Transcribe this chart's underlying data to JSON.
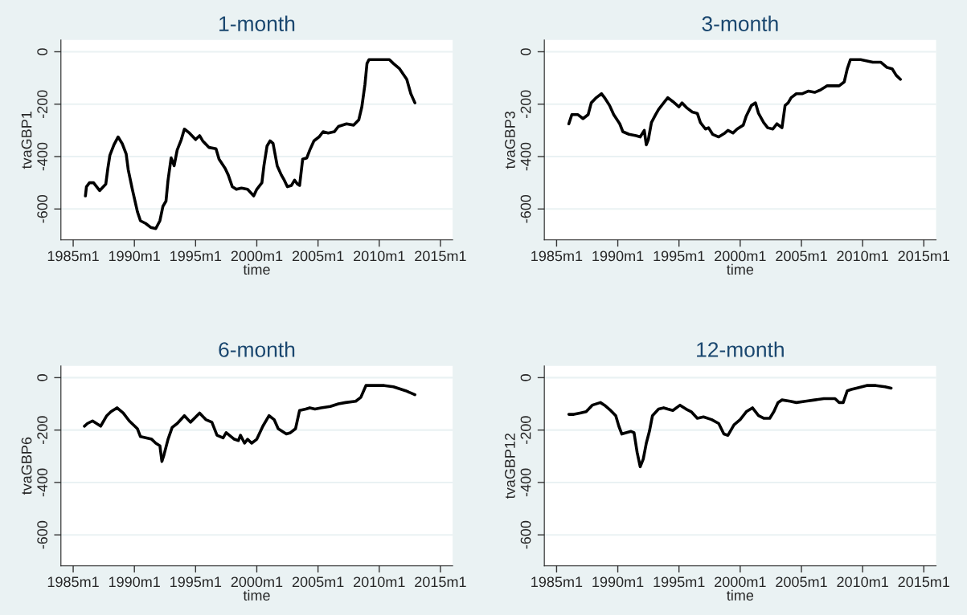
{
  "chart_data": [
    {
      "type": "line",
      "title": "1-month",
      "xlabel": "time",
      "ylabel": "tvaGBP1",
      "color": "#000000",
      "grid": "y",
      "xlim": [
        "1984-01",
        "2016-01"
      ],
      "ylim": [
        -718,
        45
      ],
      "yticks": [
        -600,
        -400,
        -200,
        0
      ],
      "xticks": [
        {
          "value": "1985-01",
          "label": "1985m1"
        },
        {
          "value": "1990-01",
          "label": "1990m1"
        },
        {
          "value": "1995-01",
          "label": "1995m1"
        },
        {
          "value": "2000-01",
          "label": "2000m1"
        },
        {
          "value": "2005-01",
          "label": "2005m1"
        },
        {
          "value": "2010-01",
          "label": "2010m1"
        },
        {
          "value": "2015-01",
          "label": "2015m1"
        }
      ],
      "x": [
        "1986-01",
        "1986-02",
        "1986-05",
        "1986-09",
        "1987-03",
        "1987-09",
        "1987-11",
        "1988-01",
        "1988-05",
        "1988-09",
        "1989-01",
        "1989-05",
        "1989-07",
        "1989-11",
        "1990-04",
        "1990-07",
        "1990-12",
        "1991-05",
        "1991-10",
        "1992-02",
        "1992-05",
        "1992-08",
        "1992-10",
        "1993-01",
        "1993-04",
        "1993-07",
        "1993-11",
        "1994-02",
        "1994-07",
        "1995-01",
        "1995-05",
        "1995-08",
        "1996-02",
        "1996-09",
        "1996-12",
        "1997-06",
        "1997-09",
        "1998-01",
        "1998-05",
        "1998-10",
        "1999-04",
        "1999-10",
        "2000-01",
        "2000-06",
        "2000-08",
        "2000-11",
        "2001-02",
        "2001-05",
        "2001-09",
        "2002-01",
        "2002-04",
        "2002-07",
        "2002-11",
        "2003-02",
        "2003-05",
        "2003-07",
        "2003-10",
        "2004-02",
        "2004-05",
        "2004-09",
        "2005-02",
        "2005-06",
        "2005-11",
        "2006-05",
        "2006-09",
        "2007-05",
        "2007-12",
        "2008-05",
        "2008-08",
        "2008-11",
        "2009-01",
        "2009-03",
        "2010-11",
        "2011-03",
        "2011-09",
        "2012-04",
        "2012-08",
        "2012-12"
      ],
      "values": [
        -550,
        -515,
        -500,
        -500,
        -530,
        -505,
        -445,
        -395,
        -355,
        -325,
        -350,
        -390,
        -450,
        -525,
        -610,
        -645,
        -655,
        -670,
        -675,
        -645,
        -590,
        -570,
        -490,
        -405,
        -435,
        -375,
        -335,
        -295,
        -310,
        -335,
        -320,
        -340,
        -365,
        -370,
        -410,
        -445,
        -470,
        -515,
        -525,
        -520,
        -525,
        -550,
        -525,
        -500,
        -435,
        -360,
        -340,
        -350,
        -435,
        -470,
        -490,
        -515,
        -510,
        -490,
        -505,
        -510,
        -410,
        -405,
        -375,
        -340,
        -325,
        -305,
        -310,
        -305,
        -285,
        -275,
        -280,
        -260,
        -210,
        -125,
        -45,
        -30,
        -30,
        -45,
        -65,
        -105,
        -160,
        -195
      ]
    },
    {
      "type": "line",
      "title": "3-month",
      "xlabel": "time",
      "ylabel": "tvaGBP3",
      "color": "#000000",
      "grid": "y",
      "xlim": [
        "1984-01",
        "2016-01"
      ],
      "ylim": [
        -718,
        45
      ],
      "yticks": [
        -600,
        -400,
        -200,
        0
      ],
      "xticks": [
        {
          "value": "1985-01",
          "label": "1985m1"
        },
        {
          "value": "1990-01",
          "label": "1990m1"
        },
        {
          "value": "1995-01",
          "label": "1995m1"
        },
        {
          "value": "2000-01",
          "label": "2000m1"
        },
        {
          "value": "2005-01",
          "label": "2005m1"
        },
        {
          "value": "2010-01",
          "label": "2010m1"
        },
        {
          "value": "2015-01",
          "label": "2015m1"
        }
      ],
      "x": [
        "1986-01",
        "1986-04",
        "1986-10",
        "1987-03",
        "1987-08",
        "1987-11",
        "1988-04",
        "1988-09",
        "1988-12",
        "1989-05",
        "1989-09",
        "1990-03",
        "1990-06",
        "1990-12",
        "1991-07",
        "1991-11",
        "1992-03",
        "1992-05",
        "1992-07",
        "1992-10",
        "1993-02",
        "1993-05",
        "1993-10",
        "1994-02",
        "1994-07",
        "1995-01",
        "1995-04",
        "1995-09",
        "1996-02",
        "1996-07",
        "1996-10",
        "1997-03",
        "1997-06",
        "1997-10",
        "1998-04",
        "1998-10",
        "1999-01",
        "1999-06",
        "1999-10",
        "2000-04",
        "2000-07",
        "2000-12",
        "2001-04",
        "2001-07",
        "2001-12",
        "2002-04",
        "2002-09",
        "2003-01",
        "2003-06",
        "2003-09",
        "2003-12",
        "2004-03",
        "2004-08",
        "2005-02",
        "2005-08",
        "2006-02",
        "2006-08",
        "2007-02",
        "2007-08",
        "2008-02",
        "2008-07",
        "2008-10",
        "2009-01",
        "2009-11",
        "2010-11",
        "2011-07",
        "2012-01",
        "2012-06",
        "2012-10",
        "2013-02"
      ],
      "values": [
        -275,
        -240,
        -240,
        -255,
        -240,
        -195,
        -175,
        -160,
        -175,
        -205,
        -240,
        -275,
        -305,
        -315,
        -320,
        -325,
        -300,
        -355,
        -335,
        -270,
        -240,
        -220,
        -195,
        -175,
        -190,
        -210,
        -195,
        -215,
        -230,
        -235,
        -270,
        -295,
        -290,
        -315,
        -325,
        -310,
        -300,
        -310,
        -295,
        -280,
        -245,
        -205,
        -195,
        -235,
        -270,
        -290,
        -295,
        -275,
        -290,
        -205,
        -195,
        -175,
        -160,
        -160,
        -150,
        -155,
        -145,
        -130,
        -130,
        -130,
        -115,
        -65,
        -30,
        -30,
        -40,
        -40,
        -60,
        -65,
        -90,
        -105
      ]
    },
    {
      "type": "line",
      "title": "6-month",
      "xlabel": "time",
      "ylabel": "tvaGBP6",
      "color": "#000000",
      "grid": "y",
      "xlim": [
        "1984-01",
        "2016-01"
      ],
      "ylim": [
        -718,
        45
      ],
      "yticks": [
        -600,
        -400,
        -200,
        0
      ],
      "xticks": [
        {
          "value": "1985-01",
          "label": "1985m1"
        },
        {
          "value": "1990-01",
          "label": "1990m1"
        },
        {
          "value": "1995-01",
          "label": "1995m1"
        },
        {
          "value": "2000-01",
          "label": "2000m1"
        },
        {
          "value": "2005-01",
          "label": "2005m1"
        },
        {
          "value": "2010-01",
          "label": "2010m1"
        },
        {
          "value": "2015-01",
          "label": "2015m1"
        }
      ],
      "x": [
        "1985-12",
        "1986-03",
        "1986-08",
        "1987-04",
        "1987-10",
        "1988-02",
        "1988-08",
        "1989-02",
        "1989-08",
        "1990-04",
        "1990-07",
        "1991-01",
        "1991-06",
        "1991-10",
        "1992-02",
        "1992-04",
        "1992-06",
        "1992-10",
        "1993-02",
        "1993-07",
        "1994-02",
        "1994-08",
        "1995-05",
        "1995-11",
        "1996-05",
        "1996-10",
        "1997-04",
        "1997-07",
        "1998-03",
        "1998-07",
        "1998-09",
        "1999-01",
        "1999-04",
        "1999-08",
        "2000-01",
        "2000-07",
        "2001-01",
        "2001-06",
        "2001-10",
        "2002-06",
        "2002-10",
        "2003-03",
        "2003-07",
        "2004-01",
        "2004-05",
        "2004-10",
        "2005-04",
        "2006-01",
        "2006-09",
        "2007-04",
        "2008-02",
        "2008-07",
        "2008-12",
        "2009-08",
        "2010-06",
        "2011-03",
        "2012-03",
        "2012-12"
      ],
      "values": [
        -185,
        -175,
        -165,
        -185,
        -145,
        -130,
        -115,
        -135,
        -165,
        -195,
        -225,
        -230,
        -235,
        -250,
        -260,
        -320,
        -295,
        -235,
        -190,
        -175,
        -145,
        -170,
        -135,
        -160,
        -170,
        -220,
        -230,
        -210,
        -235,
        -240,
        -220,
        -250,
        -235,
        -250,
        -235,
        -185,
        -145,
        -160,
        -195,
        -215,
        -210,
        -195,
        -125,
        -120,
        -115,
        -120,
        -115,
        -110,
        -100,
        -95,
        -90,
        -75,
        -30,
        -30,
        -30,
        -35,
        -50,
        -65
      ]
    },
    {
      "type": "line",
      "title": "12-month",
      "xlabel": "time",
      "ylabel": "tvaGBP12",
      "color": "#000000",
      "grid": "y",
      "xlim": [
        "1984-01",
        "2016-01"
      ],
      "ylim": [
        -718,
        45
      ],
      "yticks": [
        -600,
        -400,
        -200,
        0
      ],
      "xticks": [
        {
          "value": "1985-01",
          "label": "1985m1"
        },
        {
          "value": "1990-01",
          "label": "1990m1"
        },
        {
          "value": "1995-01",
          "label": "1995m1"
        },
        {
          "value": "2000-01",
          "label": "2000m1"
        },
        {
          "value": "2005-01",
          "label": "2005m1"
        },
        {
          "value": "2010-01",
          "label": "2010m1"
        },
        {
          "value": "2015-01",
          "label": "2015m1"
        }
      ],
      "x": [
        "1986-01",
        "1986-06",
        "1986-12",
        "1987-06",
        "1987-12",
        "1988-08",
        "1988-12",
        "1989-06",
        "1989-11",
        "1990-02",
        "1990-05",
        "1990-09",
        "1991-02",
        "1991-05",
        "1991-08",
        "1991-11",
        "1992-02",
        "1992-05",
        "1992-08",
        "1992-11",
        "1993-05",
        "1993-10",
        "1994-02",
        "1994-07",
        "1995-02",
        "1995-08",
        "1996-01",
        "1996-07",
        "1997-01",
        "1997-09",
        "1998-04",
        "1998-09",
        "1999-01",
        "1999-07",
        "2000-01",
        "2000-07",
        "2001-01",
        "2001-07",
        "2001-12",
        "2002-06",
        "2002-10",
        "2003-02",
        "2003-06",
        "2004-02",
        "2004-08",
        "2005-05",
        "2006-02",
        "2006-11",
        "2007-10",
        "2008-02",
        "2008-06",
        "2008-10",
        "2009-02",
        "2009-07",
        "2010-05",
        "2011-02",
        "2011-11",
        "2012-05"
      ],
      "values": [
        -140,
        -140,
        -135,
        -130,
        -105,
        -95,
        -105,
        -125,
        -145,
        -185,
        -215,
        -210,
        -205,
        -210,
        -285,
        -340,
        -310,
        -250,
        -205,
        -145,
        -120,
        -115,
        -120,
        -125,
        -105,
        -120,
        -130,
        -155,
        -150,
        -160,
        -175,
        -215,
        -220,
        -180,
        -160,
        -130,
        -115,
        -145,
        -155,
        -155,
        -130,
        -95,
        -85,
        -90,
        -95,
        -90,
        -85,
        -80,
        -80,
        -95,
        -95,
        -50,
        -45,
        -40,
        -30,
        -30,
        -35,
        -40
      ]
    }
  ]
}
